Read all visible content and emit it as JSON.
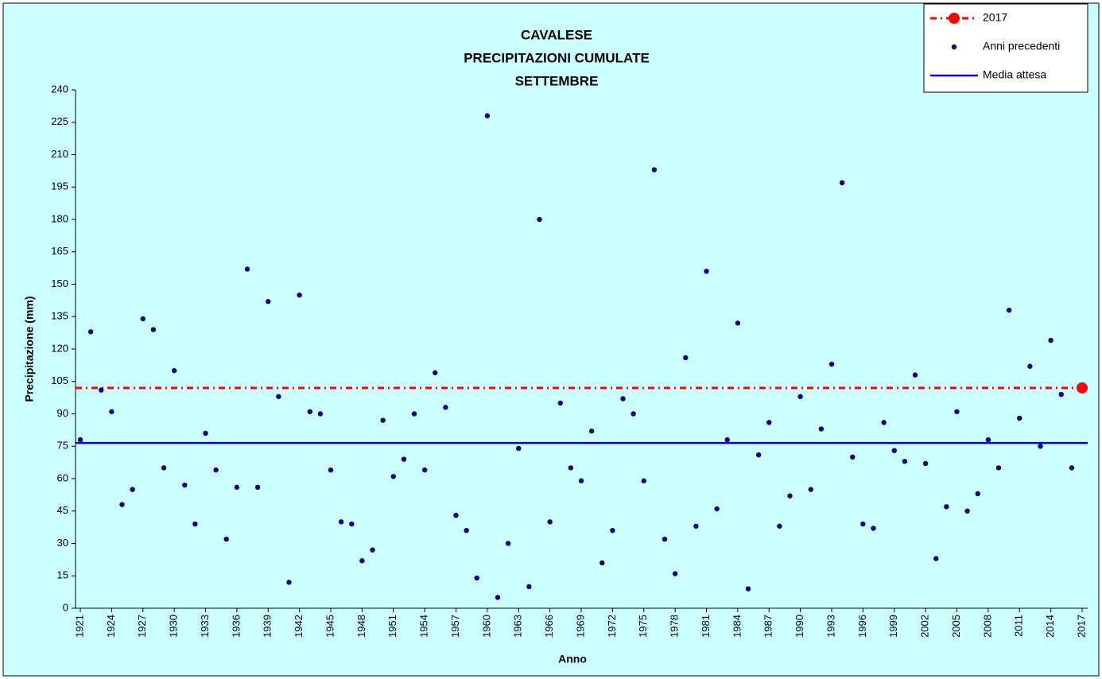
{
  "chart_data": {
    "type": "scatter",
    "title": [
      "CAVALESE",
      "PRECIPITAZIONI CUMULATE",
      "SETTEMBRE"
    ],
    "x_label": "Anno",
    "y_label": "Precipitazione (mm)",
    "xlim": [
      1921,
      2017
    ],
    "xticks": [
      1921,
      1924,
      1927,
      1930,
      1933,
      1936,
      1939,
      1942,
      1945,
      1948,
      1951,
      1954,
      1957,
      1960,
      1963,
      1966,
      1969,
      1972,
      1975,
      1978,
      1981,
      1984,
      1987,
      1990,
      1993,
      1996,
      1999,
      2002,
      2005,
      2008,
      2011,
      2014,
      2017
    ],
    "ylim": [
      0,
      240
    ],
    "yticks": [
      0,
      15,
      30,
      45,
      60,
      75,
      90,
      105,
      120,
      135,
      150,
      165,
      180,
      195,
      210,
      225,
      240
    ],
    "grid": false,
    "legend": "top-right",
    "series": [
      {
        "name": "2017",
        "color": "#ff0000",
        "style": "dashed-hline-marker",
        "x": [
          2017
        ],
        "values": [
          102
        ]
      },
      {
        "name": "Anni precedenti",
        "color": "#000080",
        "style": "dots",
        "x": [
          1921,
          1922,
          1923,
          1924,
          1925,
          1926,
          1927,
          1928,
          1929,
          1930,
          1931,
          1932,
          1933,
          1934,
          1935,
          1936,
          1937,
          1938,
          1939,
          1940,
          1941,
          1942,
          1943,
          1944,
          1945,
          1946,
          1947,
          1948,
          1949,
          1950,
          1951,
          1952,
          1953,
          1954,
          1955,
          1956,
          1957,
          1958,
          1959,
          1960,
          1961,
          1962,
          1963,
          1964,
          1965,
          1966,
          1967,
          1968,
          1969,
          1970,
          1971,
          1972,
          1973,
          1974,
          1975,
          1976,
          1977,
          1978,
          1979,
          1980,
          1981,
          1982,
          1983,
          1984,
          1985,
          1986,
          1987,
          1988,
          1989,
          1990,
          1991,
          1992,
          1993,
          1994,
          1995,
          1996,
          1997,
          1998,
          1999,
          2000,
          2001,
          2002,
          2003,
          2004,
          2005,
          2006,
          2007,
          2008,
          2009,
          2010,
          2011,
          2012,
          2013,
          2014,
          2015,
          2016
        ],
        "values": [
          78,
          128,
          101,
          91,
          48,
          55,
          134,
          129,
          65,
          110,
          57,
          39,
          81,
          64,
          32,
          56,
          157,
          56,
          142,
          98,
          12,
          145,
          91,
          90,
          64,
          40,
          39,
          22,
          27,
          87,
          61,
          69,
          90,
          64,
          109,
          93,
          43,
          36,
          14,
          228,
          5,
          30,
          74,
          10,
          180,
          40,
          95,
          65,
          59,
          82,
          21,
          36,
          97,
          90,
          59,
          203,
          32,
          16,
          116,
          38,
          156,
          46,
          78,
          132,
          9,
          71,
          86,
          38,
          52,
          98,
          55,
          83,
          113,
          197,
          70,
          39,
          37,
          86,
          73,
          68,
          108,
          67,
          23,
          47,
          91,
          45,
          53,
          78,
          65,
          138,
          88,
          112,
          75,
          124,
          99,
          65
        ]
      },
      {
        "name": "Media attesa",
        "color": "#0000cc",
        "style": "hline",
        "values": [
          76.5
        ]
      }
    ]
  }
}
